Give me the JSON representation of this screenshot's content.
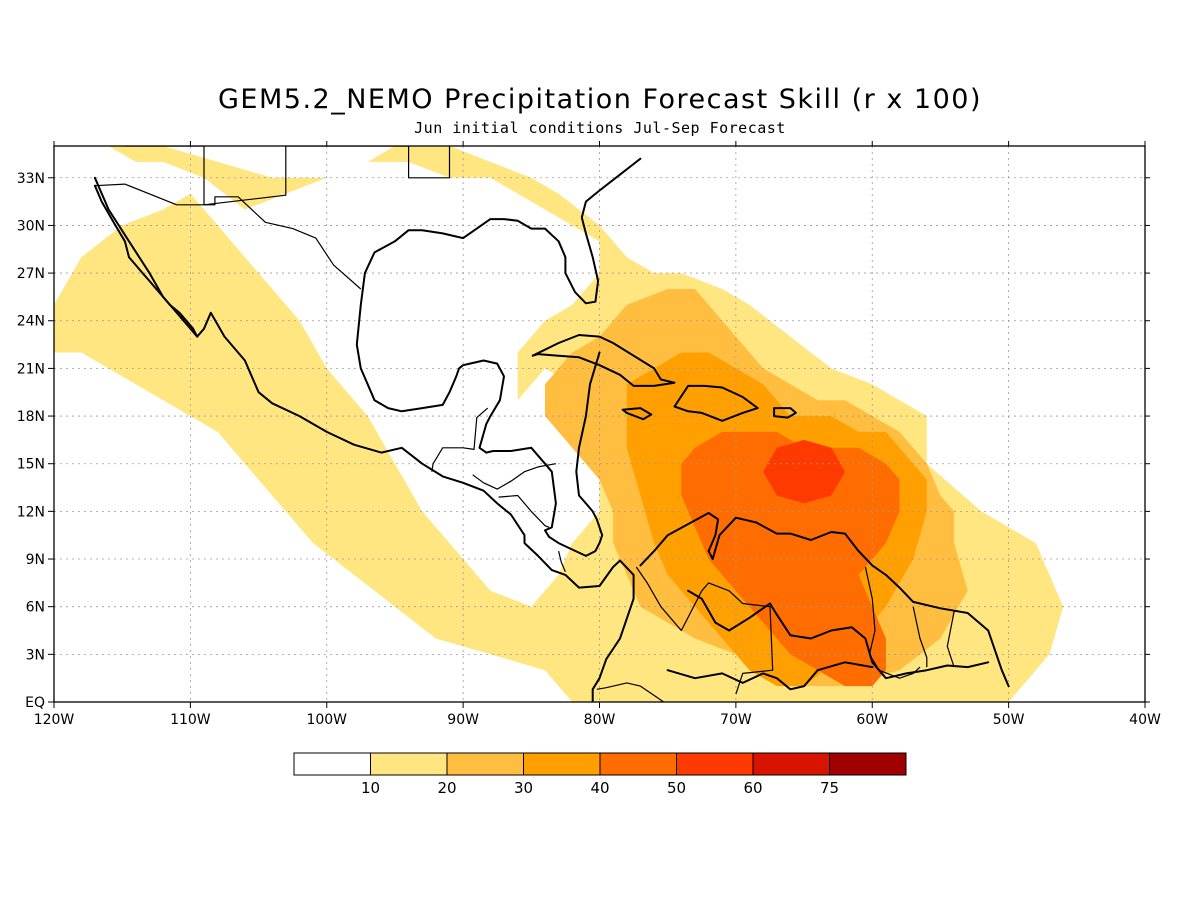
{
  "title": "GEM5.2_NEMO Precipitation Forecast Skill (r x 100)",
  "subtitle": "Jun initial conditions  Jul-Sep Forecast",
  "map": {
    "lon_range": [
      -120,
      -40
    ],
    "lat_range": [
      0,
      35
    ],
    "x_ticks": [
      {
        "lon": -120,
        "label": "120W"
      },
      {
        "lon": -110,
        "label": "110W"
      },
      {
        "lon": -100,
        "label": "100W"
      },
      {
        "lon": -90,
        "label": "90W"
      },
      {
        "lon": -80,
        "label": "80W"
      },
      {
        "lon": -70,
        "label": "70W"
      },
      {
        "lon": -60,
        "label": "60W"
      },
      {
        "lon": -50,
        "label": "50W"
      },
      {
        "lon": -40,
        "label": "40W"
      }
    ],
    "y_ticks": [
      {
        "lat": 0,
        "label": "EQ"
      },
      {
        "lat": 3,
        "label": "3N"
      },
      {
        "lat": 6,
        "label": "6N"
      },
      {
        "lat": 9,
        "label": "9N"
      },
      {
        "lat": 12,
        "label": "12N"
      },
      {
        "lat": 15,
        "label": "15N"
      },
      {
        "lat": 18,
        "label": "18N"
      },
      {
        "lat": 21,
        "label": "21N"
      },
      {
        "lat": 24,
        "label": "24N"
      },
      {
        "lat": 27,
        "label": "27N"
      },
      {
        "lat": 30,
        "label": "30N"
      },
      {
        "lat": 33,
        "label": "33N"
      }
    ],
    "grid": true,
    "colorbar": {
      "colors": [
        "#ffffff",
        "#ffe680",
        "#ffbe40",
        "#ffa000",
        "#ff6c00",
        "#ff3a00",
        "#d81400",
        "#a00000"
      ],
      "labels": [
        "10",
        "20",
        "30",
        "40",
        "50",
        "60",
        "75"
      ]
    },
    "skill_regions": [
      {
        "level": 1,
        "lon": [
          -120,
          -118,
          -117,
          -116,
          -112,
          -108,
          -104,
          -100,
          -97,
          -95,
          -91,
          -88,
          -85,
          -83,
          -80,
          -78,
          -76,
          -74,
          -71,
          -69,
          -66,
          -63,
          -60,
          -56,
          -56,
          -52,
          -48,
          -46,
          -47,
          -50,
          -55,
          -60,
          -66,
          -72,
          -76,
          -78,
          -80,
          -82,
          -84,
          -88,
          -92,
          -95,
          -98,
          -101,
          -103,
          -104,
          -106,
          -108,
          -110,
          -112,
          -114,
          -116,
          -118,
          -120,
          -120,
          -118,
          -115,
          -112,
          -110,
          -108,
          -106,
          -102,
          -100,
          -97,
          -95,
          -93,
          -90,
          -88,
          -85,
          -83,
          -82,
          -80,
          -80,
          -79,
          -80,
          -82,
          -84,
          -85,
          -86,
          -86,
          -84,
          -82,
          -81,
          -80,
          -80,
          -82,
          -84,
          -86,
          -88,
          -91,
          -94,
          -97,
          -100,
          -103,
          -106,
          -109,
          -112,
          -114,
          -116,
          -118,
          -120
        ],
        "lat": [
          35,
          35,
          35,
          35,
          35,
          34,
          33,
          33,
          34,
          35,
          35,
          34,
          33,
          32,
          30,
          28,
          27,
          27,
          26,
          25,
          23,
          21,
          20,
          18,
          15,
          12,
          10,
          6,
          3,
          0,
          0,
          0,
          0,
          0,
          0,
          0,
          0,
          0,
          2,
          3,
          4,
          6,
          8,
          10,
          12,
          13,
          15,
          17,
          18,
          19,
          20,
          21,
          22,
          22,
          25,
          28,
          30,
          31,
          32,
          30,
          28,
          24,
          21,
          18,
          15,
          12,
          9,
          7,
          6,
          8,
          10,
          12,
          14,
          16,
          18,
          20,
          21,
          20,
          19,
          22,
          24,
          25,
          26,
          27,
          29,
          30,
          31,
          32,
          33,
          33,
          34,
          34,
          33,
          32,
          31,
          33,
          34,
          34,
          35,
          35,
          35
        ]
      },
      {
        "level": 2,
        "lon": [
          -82,
          -80,
          -78,
          -75,
          -73,
          -72,
          -70,
          -68,
          -66,
          -64,
          -62,
          -60,
          -58,
          -57,
          -56,
          -55,
          -54,
          -54,
          -53,
          -55,
          -58,
          -62,
          -65,
          -68,
          -70,
          -73,
          -75,
          -77,
          -78,
          -79,
          -79,
          -80,
          -82,
          -83,
          -84,
          -84,
          -83,
          -82
        ],
        "lat": [
          22,
          23,
          25,
          26,
          26,
          25,
          23,
          21,
          20,
          19,
          19,
          18,
          17,
          16,
          15,
          13,
          12,
          10,
          7,
          4,
          2,
          1,
          1,
          2,
          3,
          4,
          5,
          6,
          8,
          10,
          12,
          14,
          16,
          17,
          18,
          20,
          21,
          22
        ]
      },
      {
        "level": 3,
        "lon": [
          -78,
          -76,
          -74,
          -72,
          -70,
          -68,
          -66,
          -63,
          -61,
          -59,
          -58,
          -57,
          -56,
          -56,
          -57,
          -59,
          -62,
          -65,
          -67,
          -69,
          -71,
          -73,
          -75,
          -76,
          -77,
          -78,
          -78
        ],
        "lat": [
          20,
          21,
          22,
          22,
          21,
          20,
          18,
          18,
          17,
          17,
          16,
          15,
          14,
          12,
          9,
          6,
          3,
          1,
          1,
          2,
          4,
          6,
          8,
          10,
          13,
          16,
          20
        ]
      },
      {
        "level": 4,
        "lon": [
          -73,
          -71,
          -69,
          -67,
          -65,
          -63,
          -61,
          -59,
          -58,
          -58,
          -59,
          -61,
          -60,
          -59,
          -59,
          -60,
          -62,
          -64,
          -66,
          -68,
          -70,
          -72,
          -73,
          -74,
          -74,
          -73
        ],
        "lat": [
          16,
          17,
          17,
          17,
          16,
          16,
          16,
          15,
          14,
          12,
          10,
          8,
          6,
          4,
          2,
          1,
          1,
          2,
          3,
          5,
          7,
          9,
          11,
          13,
          15,
          16
        ]
      },
      {
        "level": 5,
        "lon": [
          -67,
          -65,
          -63,
          -62,
          -63,
          -65,
          -67,
          -68,
          -67
        ],
        "lat": [
          16,
          16.5,
          16,
          14.5,
          13,
          12.5,
          13,
          14.5,
          16
        ]
      }
    ],
    "coast_lines": [
      {
        "lon": [
          -117,
          -116,
          -114.5,
          -113,
          -112,
          -110.5,
          -109.5,
          -109,
          -108.5,
          -107.5,
          -106,
          -105.5,
          -105,
          -104,
          -102,
          -100,
          -98,
          -96,
          -94.5,
          -93,
          -91.5,
          -90,
          -88.5,
          -87.5,
          -86.5,
          -85.5,
          -85.5,
          -84.5,
          -83.5,
          -82.5,
          -81.5,
          -80,
          -79,
          -78.5,
          -77.5,
          -77.5,
          -78.5,
          -79.5,
          -80,
          -80.5,
          -80.5
        ],
        "lat": [
          33,
          31,
          29,
          27,
          25.5,
          24,
          23,
          23.5,
          24.5,
          23,
          21.5,
          20.5,
          19.5,
          18.8,
          18,
          17,
          16.2,
          15.7,
          16,
          15,
          14.2,
          13.8,
          13.3,
          12.5,
          11.8,
          10.5,
          10,
          9.2,
          8.3,
          8,
          7.2,
          7.3,
          8.5,
          8.9,
          8,
          6.5,
          4,
          2.7,
          1.5,
          0.8,
          0
        ]
      },
      {
        "lon": [
          -97.2,
          -97.5,
          -97.8,
          -97.5,
          -97,
          -96.5,
          -95.5,
          -94.5,
          -93,
          -91.5,
          -91,
          -90.5,
          -90.3,
          -90,
          -89.5,
          -88.5,
          -87.5,
          -87,
          -87.3,
          -88,
          -88.3,
          -88.8,
          -88.3,
          -87.8,
          -86.5,
          -85,
          -84,
          -83.5,
          -83.2,
          -83.5,
          -84,
          -83.7,
          -83,
          -82,
          -81,
          -80.3,
          -80,
          -79.8,
          -80,
          -80.2,
          -80.5,
          -81,
          -81.5,
          -81.7,
          -81.5,
          -81,
          -80.7,
          -80
        ],
        "lat": [
          27,
          25,
          22.5,
          21,
          20,
          19,
          18.5,
          18.3,
          18.5,
          18.7,
          19.5,
          20.5,
          21,
          21.2,
          21.3,
          21.5,
          21.3,
          20.5,
          19,
          18,
          17.5,
          16,
          15.7,
          15.8,
          15.8,
          16,
          15,
          14.5,
          12.5,
          11,
          10.8,
          10.4,
          10,
          9.6,
          9.2,
          9.5,
          10,
          10.5,
          11,
          11.5,
          12,
          12.5,
          13,
          14.5,
          16,
          18,
          20,
          22
        ]
      },
      {
        "lon": [
          -117,
          -116.5,
          -115.5,
          -114.8,
          -114.5,
          -114,
          -113.5,
          -113,
          -112.5,
          -112,
          -111.5,
          -110.8,
          -110.3,
          -109.8,
          -109.5
        ],
        "lat": [
          32.5,
          31.5,
          30,
          29,
          28,
          27.5,
          27,
          26.5,
          26,
          25.5,
          25,
          24.5,
          24,
          23.5,
          23
        ]
      },
      {
        "lon": [
          -97.2,
          -96.5,
          -95,
          -94,
          -93,
          -91.5,
          -90,
          -89,
          -88,
          -87,
          -86,
          -85,
          -84,
          -83,
          -82.5,
          -82.5,
          -81.8,
          -81,
          -80.3,
          -80.1,
          -80.5,
          -81,
          -81.3,
          -81,
          -80,
          -78.5,
          -77
        ],
        "lat": [
          27,
          28.3,
          29,
          29.7,
          29.7,
          29.5,
          29.2,
          29.8,
          30.4,
          30.4,
          30.3,
          29.8,
          29.8,
          29,
          28,
          27,
          25.8,
          25.1,
          25.2,
          26.5,
          28,
          29.5,
          30.5,
          31.5,
          32.2,
          33.2,
          34.2
        ]
      },
      {
        "lon": [
          -84.9,
          -83,
          -81.5,
          -80,
          -79,
          -77.5,
          -76,
          -75.5,
          -74.5,
          -76,
          -77.5,
          -78.5,
          -80,
          -81.5,
          -83,
          -84.5,
          -84.9
        ],
        "lat": [
          21.8,
          22.6,
          23.1,
          23,
          22.6,
          21.8,
          21,
          20.3,
          20.1,
          19.9,
          19.9,
          20.6,
          21.2,
          21.7,
          21.8,
          21.9,
          21.8
        ]
      },
      {
        "lon": [
          -74.5,
          -73.5,
          -72.3,
          -71,
          -69.5,
          -68.4,
          -69.5,
          -71,
          -72.5,
          -73.5,
          -74.5
        ],
        "lat": [
          18.6,
          19.9,
          19.9,
          19.8,
          19.2,
          18.5,
          18.2,
          17.7,
          18.2,
          18.3,
          18.6
        ]
      },
      {
        "lon": [
          -78.3,
          -77,
          -76.2,
          -76.8,
          -78,
          -78.3
        ],
        "lat": [
          18.4,
          18.5,
          18.1,
          17.8,
          18.2,
          18.4
        ]
      },
      {
        "lon": [
          -67.2,
          -66,
          -65.6,
          -66.2,
          -67.2,
          -67.2
        ],
        "lat": [
          18.5,
          18.5,
          18.2,
          17.9,
          18,
          18.5
        ]
      },
      {
        "lon": [
          -77,
          -76,
          -75,
          -73.5,
          -72,
          -71.3,
          -71.5,
          -72,
          -71.7,
          -71.2,
          -70,
          -68.5,
          -67,
          -66,
          -64.5,
          -63,
          -62,
          -61,
          -60,
          -59,
          -58,
          -57,
          -55,
          -53,
          -51.5,
          -50.5,
          -50
        ],
        "lat": [
          8.6,
          9.5,
          10.5,
          11.2,
          11.9,
          11.5,
          10.5,
          9.5,
          9,
          10.5,
          11.6,
          11.3,
          10.6,
          10.6,
          10.2,
          10.7,
          10.6,
          9.5,
          8.6,
          8,
          7.2,
          6.3,
          5.9,
          5.6,
          4.5,
          2,
          1
        ]
      },
      {
        "lon": [
          -73.5,
          -72.5,
          -71.5,
          -70.5,
          -69,
          -67.5,
          -67,
          -66,
          -64.5,
          -63,
          -61.5,
          -60.5,
          -60,
          -59,
          -57.5,
          -56,
          -54.5,
          -53,
          -51.5
        ],
        "lat": [
          7,
          6.5,
          5,
          4.5,
          5.3,
          6.2,
          5.5,
          4.2,
          4,
          4.5,
          4.7,
          4,
          2.5,
          1.5,
          1.8,
          2,
          2.3,
          2.2,
          2.5
        ]
      },
      {
        "lon": [
          -75,
          -73,
          -71,
          -69.5,
          -68,
          -67,
          -66,
          -65,
          -64,
          -62,
          -60
        ],
        "lat": [
          2,
          1.5,
          1.8,
          1.2,
          1.8,
          1.5,
          0.8,
          1,
          2,
          2.5,
          2.2
        ]
      }
    ],
    "border_lines": [
      {
        "lon": [
          -117,
          -114.8,
          -111,
          -108.2,
          -108.2,
          -106.5,
          -104.5,
          -102.5,
          -100.8,
          -99.5,
          -97.5
        ],
        "lat": [
          32.5,
          32.6,
          31.3,
          31.3,
          31.8,
          31.8,
          30.2,
          29.8,
          29.2,
          27.5,
          26
        ]
      },
      {
        "lon": [
          -114.8,
          -109,
          -109,
          -103,
          -103,
          -94,
          -94,
          -91,
          -91
        ],
        "lat": [
          35,
          35,
          31.3,
          31.9,
          35,
          35,
          33,
          33,
          35
        ]
      },
      {
        "lon": [
          -88.2,
          -89,
          -89.2,
          -90,
          -91.5,
          -92.2,
          -92.3
        ],
        "lat": [
          18.5,
          17.9,
          15.9,
          16,
          16,
          15,
          14.5
        ]
      },
      {
        "lon": [
          -89.3,
          -88.5,
          -87.5,
          -86.5,
          -85.5,
          -84.5,
          -83.2
        ],
        "lat": [
          14.3,
          13.8,
          13.4,
          13.9,
          14.5,
          14.8,
          15
        ]
      },
      {
        "lon": [
          -87.4,
          -86,
          -85,
          -84,
          -83.7
        ],
        "lat": [
          12.9,
          13,
          12,
          11.1,
          11
        ]
      },
      {
        "lon": [
          -83,
          -82.8,
          -82.5
        ],
        "lat": [
          9.5,
          8.8,
          8.2
        ]
      },
      {
        "lon": [
          -77.3,
          -76.5,
          -75.5,
          -74,
          -72.5,
          -72,
          -70.5,
          -69.5,
          -67.5,
          -67.3,
          -69.5,
          -70
        ],
        "lat": [
          8.5,
          7.5,
          6,
          4.5,
          7,
          7.5,
          7,
          6.2,
          6,
          2,
          1.8,
          0.5
        ]
      },
      {
        "lon": [
          -60.5,
          -60,
          -59.8,
          -60.2,
          -59.5,
          -58,
          -57,
          -56.5
        ],
        "lat": [
          8.5,
          6.5,
          4.5,
          3,
          2,
          1.5,
          1.8,
          2.2
        ]
      },
      {
        "lon": [
          -57,
          -56.5,
          -56,
          -56
        ],
        "lat": [
          6,
          4,
          2.8,
          2.2
        ]
      },
      {
        "lon": [
          -54,
          -54.5,
          -54
        ],
        "lat": [
          5.7,
          3.5,
          2.2
        ]
      },
      {
        "lon": [
          -80.2,
          -79.5,
          -78,
          -77,
          -75.8,
          -75.3,
          -75
        ],
        "lat": [
          0.8,
          0.9,
          1.2,
          1,
          0.3,
          0,
          -0.2
        ]
      }
    ]
  }
}
